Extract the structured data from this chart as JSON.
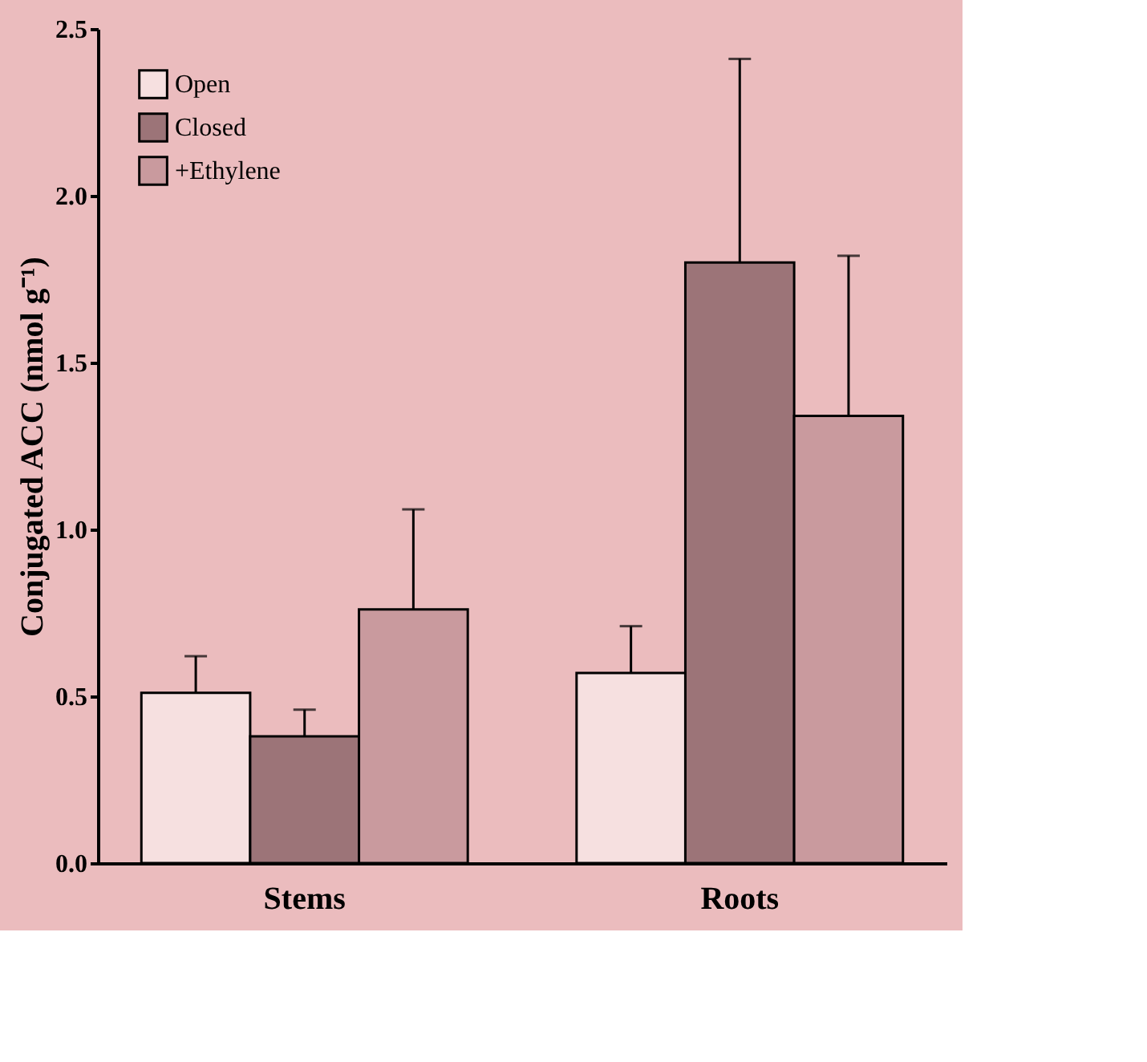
{
  "chart_data": {
    "type": "bar",
    "ylabel": "Conjugated ACC (nmol g⁻¹)",
    "categories": [
      "Stems",
      "Roots"
    ],
    "series": [
      {
        "name": "Open",
        "color": "#f6e0e0",
        "values": [
          0.51,
          0.57
        ],
        "errors": [
          [
            0.51,
            0.62
          ],
          [
            0.57,
            0.71
          ]
        ]
      },
      {
        "name": "Closed",
        "color": "#9c7478",
        "values": [
          0.38,
          1.8
        ],
        "errors": [
          [
            0.38,
            0.46
          ],
          [
            1.8,
            2.41
          ]
        ]
      },
      {
        "name": "+Ethylene",
        "color": "#c99a9e",
        "values": [
          0.76,
          1.34
        ],
        "errors": [
          [
            0.76,
            1.06
          ],
          [
            1.34,
            1.82
          ]
        ]
      }
    ],
    "ylim": [
      0,
      2.5
    ],
    "yticks": [
      {
        "value": 0,
        "label": "0.0"
      },
      {
        "value": 0.5,
        "label": "0.5"
      },
      {
        "value": 1,
        "label": "1.0"
      },
      {
        "value": 1.5,
        "label": "1.5"
      },
      {
        "value": 2,
        "label": "2.0"
      },
      {
        "value": 2.5,
        "label": "2.5"
      }
    ],
    "grid": false,
    "legend": "top left"
  }
}
